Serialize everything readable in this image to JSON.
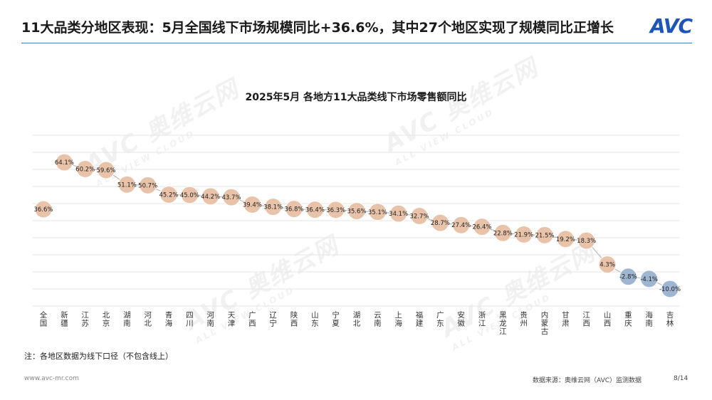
{
  "header": {
    "title": "11大品类分地区表现：5月全国线下市场规模同比+36.6%，其中27个地区实现了规模同比正增长",
    "logo_text": "AVC"
  },
  "watermark": {
    "text": "AVC 奥维云网",
    "subtext": "ALL VIEW CLOUD"
  },
  "footer": {
    "note": "注：各地区数据为线下口径（不包含线上）",
    "website": "www.avc-mr.com",
    "source": "数据来源：奥维云网（AVC）监测数据",
    "page": "8/14"
  },
  "colors": {
    "positive": "#e8c3a9",
    "negative": "#9fb6d3",
    "line": "#bcbcbc",
    "grid": "#e6e6e6"
  },
  "chart_data": {
    "type": "line",
    "title": "2025年5月 各地方11大品类线下市场零售额同比",
    "categories": [
      "全国",
      "新疆",
      "江苏",
      "北京",
      "湖南",
      "河北",
      "青海",
      "四川",
      "河南",
      "天津",
      "广西",
      "辽宁",
      "陕西",
      "山东",
      "宁夏",
      "湖北",
      "云南",
      "上海",
      "福建",
      "广东",
      "安徽",
      "浙江",
      "黑龙江",
      "贵州",
      "内蒙古",
      "甘肃",
      "江西",
      "山西",
      "重庆",
      "海南",
      "吉林"
    ],
    "values": [
      36.6,
      64.1,
      60.2,
      59.6,
      51.1,
      50.7,
      45.2,
      45.0,
      44.2,
      43.7,
      39.4,
      38.1,
      36.8,
      36.4,
      36.3,
      35.6,
      35.1,
      34.1,
      32.7,
      28.7,
      27.4,
      26.4,
      22.8,
      21.9,
      21.5,
      19.2,
      18.3,
      4.3,
      -2.8,
      -4.1,
      -10.0
    ],
    "data_labels": [
      "36.6%",
      "64.1%",
      "60.2%",
      "59.6%",
      "51.1%",
      "50.7%",
      "45.2%",
      "45.0%",
      "44.2%",
      "43.7%",
      "39.4%",
      "38.1%",
      "36.8%",
      "36.4%",
      "36.3%",
      "35.6%",
      "35.1%",
      "34.1%",
      "32.7%",
      "28.7%",
      "27.4%",
      "26.4%",
      "22.8%",
      "21.9%",
      "21.5%",
      "19.2%",
      "18.3%",
      "4.3%",
      "-2.8%",
      "-4.1%",
      "-10.0%"
    ],
    "ylim": [
      -20,
      80
    ],
    "grid": true,
    "line_from_index": 1
  }
}
